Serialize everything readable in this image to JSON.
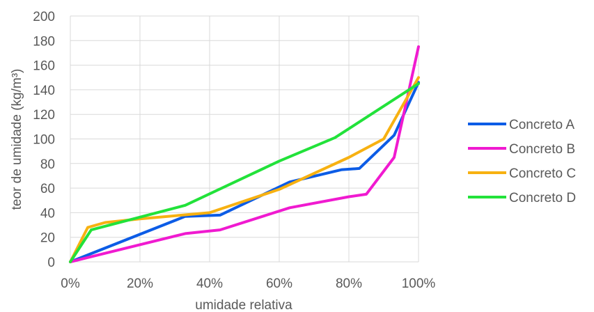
{
  "chart_data": {
    "type": "line",
    "xlabel": "umidade relativa",
    "ylabel": "teor de umidade (kg/m³)",
    "xlim": [
      0,
      100
    ],
    "ylim": [
      0,
      200
    ],
    "x_ticks": [
      0,
      20,
      40,
      60,
      80,
      100
    ],
    "x_tick_labels": [
      "0%",
      "20%",
      "40%",
      "60%",
      "80%",
      "100%"
    ],
    "y_ticks": [
      0,
      20,
      40,
      60,
      80,
      100,
      120,
      140,
      160,
      180,
      200
    ],
    "y_tick_labels": [
      "0",
      "20",
      "40",
      "60",
      "80",
      "100",
      "120",
      "140",
      "160",
      "180",
      "200"
    ],
    "grid": true,
    "legend_position": "right",
    "series": [
      {
        "name": "Concreto A",
        "color": "#0c5ce6",
        "x": [
          0,
          33,
          43,
          63,
          78,
          83,
          93,
          100
        ],
        "y": [
          0,
          37,
          38,
          65,
          75,
          76,
          103,
          146
        ]
      },
      {
        "name": "Concreto B",
        "color": "#f01ad0",
        "x": [
          0,
          33,
          43,
          63,
          80,
          85,
          93,
          100
        ],
        "y": [
          0,
          23,
          26,
          44,
          53,
          55,
          85,
          175
        ]
      },
      {
        "name": "Concreto C",
        "color": "#f7b111",
        "x": [
          0,
          5,
          10,
          20,
          40,
          60,
          80,
          90,
          100
        ],
        "y": [
          0,
          28,
          32,
          35,
          40,
          59,
          85,
          100,
          150
        ]
      },
      {
        "name": "Concreto D",
        "color": "#22e23a",
        "x": [
          0,
          6,
          33,
          60,
          76,
          100
        ],
        "y": [
          0,
          26,
          46,
          82,
          101,
          145
        ]
      }
    ]
  }
}
